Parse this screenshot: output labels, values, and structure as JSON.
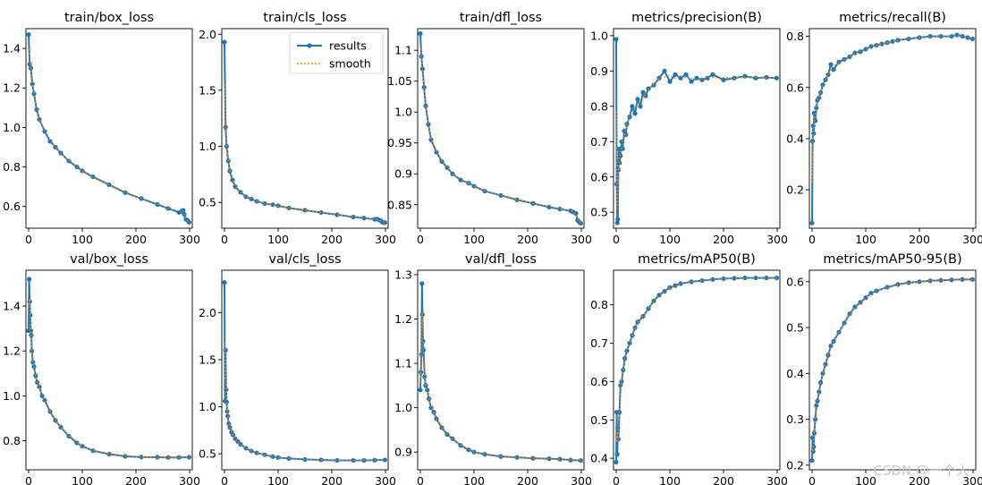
{
  "watermark": "CSDN @一个人",
  "legend": {
    "results": "results",
    "smooth": "smooth"
  },
  "colors": {
    "results": "#1f77b4",
    "smooth": "#ff7f0e",
    "axes": "#000000"
  },
  "chart_data": [
    {
      "type": "line",
      "title": "train/box_loss",
      "xlim": [
        -5,
        305
      ],
      "ylim": [
        0.49,
        1.5
      ],
      "xticks": [
        0,
        100,
        200,
        300
      ],
      "yticks": [
        0.6,
        0.8,
        1.0,
        1.2,
        1.4
      ],
      "x": [
        0,
        2,
        4,
        7,
        10,
        15,
        20,
        30,
        40,
        50,
        60,
        75,
        90,
        100,
        120,
        150,
        180,
        210,
        240,
        260,
        280,
        285,
        288,
        290,
        293,
        296,
        299
      ],
      "series": [
        {
          "name": "results",
          "values": [
            1.47,
            1.32,
            1.3,
            1.22,
            1.17,
            1.09,
            1.04,
            0.98,
            0.93,
            0.9,
            0.87,
            0.83,
            0.8,
            0.78,
            0.75,
            0.71,
            0.67,
            0.64,
            0.61,
            0.59,
            0.57,
            0.575,
            0.58,
            0.56,
            0.535,
            0.53,
            0.52
          ]
        }
      ]
    },
    {
      "type": "line",
      "title": "train/cls_loss",
      "xlim": [
        -5,
        305
      ],
      "ylim": [
        0.27,
        2.05
      ],
      "xticks": [
        0,
        100,
        200,
        300
      ],
      "yticks": [
        0.5,
        1.0,
        1.5,
        2.0
      ],
      "legend": true,
      "x": [
        0,
        2,
        4,
        7,
        10,
        15,
        20,
        30,
        40,
        50,
        60,
        75,
        90,
        100,
        120,
        150,
        180,
        210,
        240,
        260,
        280,
        285,
        290,
        293,
        296,
        299
      ],
      "series": [
        {
          "name": "results",
          "values": [
            1.93,
            1.17,
            1.0,
            0.87,
            0.78,
            0.7,
            0.64,
            0.59,
            0.55,
            0.53,
            0.51,
            0.49,
            0.48,
            0.47,
            0.45,
            0.43,
            0.41,
            0.39,
            0.37,
            0.36,
            0.35,
            0.35,
            0.34,
            0.33,
            0.32,
            0.32
          ]
        }
      ]
    },
    {
      "type": "line",
      "title": "train/dfl_loss",
      "xlim": [
        -5,
        305
      ],
      "ylim": [
        0.812,
        1.135
      ],
      "xticks": [
        0,
        100,
        200,
        300
      ],
      "yticks": [
        0.85,
        0.9,
        0.95,
        1.0,
        1.05,
        1.1
      ],
      "x": [
        0,
        2,
        4,
        7,
        10,
        15,
        20,
        30,
        40,
        50,
        60,
        75,
        90,
        100,
        120,
        150,
        180,
        210,
        240,
        260,
        280,
        285,
        290,
        293,
        296,
        299
      ],
      "series": [
        {
          "name": "results",
          "values": [
            1.127,
            1.09,
            1.07,
            1.04,
            1.01,
            0.98,
            0.955,
            0.935,
            0.92,
            0.91,
            0.9,
            0.89,
            0.885,
            0.88,
            0.872,
            0.865,
            0.858,
            0.852,
            0.846,
            0.843,
            0.84,
            0.838,
            0.836,
            0.825,
            0.822,
            0.82
          ]
        }
      ]
    },
    {
      "type": "line",
      "title": "metrics/precision(B)",
      "xlim": [
        -5,
        305
      ],
      "ylim": [
        0.455,
        1.02
      ],
      "xticks": [
        0,
        100,
        200,
        300
      ],
      "yticks": [
        0.5,
        0.6,
        0.7,
        0.8,
        0.9,
        1.0
      ],
      "x": [
        0,
        1,
        2,
        3,
        4,
        5,
        6,
        8,
        10,
        12,
        15,
        18,
        20,
        25,
        30,
        35,
        40,
        45,
        50,
        55,
        60,
        70,
        80,
        90,
        100,
        110,
        120,
        130,
        140,
        150,
        160,
        170,
        180,
        200,
        220,
        240,
        260,
        280,
        299
      ],
      "series": [
        {
          "name": "results",
          "values": [
            0.99,
            0.58,
            0.47,
            0.48,
            0.62,
            0.68,
            0.64,
            0.66,
            0.7,
            0.68,
            0.73,
            0.72,
            0.75,
            0.77,
            0.8,
            0.78,
            0.82,
            0.8,
            0.84,
            0.83,
            0.85,
            0.86,
            0.88,
            0.9,
            0.87,
            0.89,
            0.88,
            0.89,
            0.87,
            0.88,
            0.875,
            0.88,
            0.89,
            0.875,
            0.88,
            0.885,
            0.88,
            0.882,
            0.88
          ]
        }
      ]
    },
    {
      "type": "line",
      "title": "metrics/recall(B)",
      "xlim": [
        -5,
        305
      ],
      "ylim": [
        0.05,
        0.83
      ],
      "xticks": [
        0,
        100,
        200,
        300
      ],
      "yticks": [
        0.2,
        0.4,
        0.6,
        0.8
      ],
      "x": [
        0,
        1,
        2,
        3,
        4,
        6,
        8,
        10,
        13,
        16,
        20,
        25,
        30,
        35,
        40,
        50,
        60,
        70,
        80,
        90,
        100,
        110,
        120,
        130,
        140,
        150,
        160,
        180,
        200,
        220,
        240,
        260,
        270,
        280,
        290,
        299
      ],
      "series": [
        {
          "name": "results",
          "values": [
            0.07,
            0.39,
            0.45,
            0.42,
            0.5,
            0.47,
            0.52,
            0.55,
            0.56,
            0.58,
            0.61,
            0.63,
            0.65,
            0.69,
            0.67,
            0.7,
            0.71,
            0.72,
            0.735,
            0.74,
            0.75,
            0.76,
            0.765,
            0.77,
            0.775,
            0.78,
            0.785,
            0.79,
            0.795,
            0.8,
            0.8,
            0.8,
            0.805,
            0.8,
            0.795,
            0.79
          ]
        }
      ]
    },
    {
      "type": "line",
      "title": "val/box_loss",
      "xlim": [
        -5,
        305
      ],
      "ylim": [
        0.67,
        1.56
      ],
      "xticks": [
        0,
        100,
        200,
        300
      ],
      "yticks": [
        0.8,
        1.0,
        1.2,
        1.4
      ],
      "x": [
        0,
        1,
        2,
        3,
        4,
        5,
        6,
        8,
        10,
        13,
        16,
        20,
        25,
        30,
        40,
        50,
        60,
        75,
        90,
        100,
        120,
        150,
        180,
        210,
        240,
        260,
        280,
        299
      ],
      "series": [
        {
          "name": "results",
          "values": [
            1.29,
            1.52,
            1.42,
            1.36,
            1.29,
            1.27,
            1.2,
            1.15,
            1.13,
            1.09,
            1.06,
            1.04,
            1.0,
            0.98,
            0.93,
            0.89,
            0.86,
            0.82,
            0.79,
            0.775,
            0.755,
            0.74,
            0.73,
            0.727,
            0.726,
            0.725,
            0.725,
            0.726
          ]
        }
      ]
    },
    {
      "type": "line",
      "title": "val/cls_loss",
      "xlim": [
        -5,
        305
      ],
      "ylim": [
        0.33,
        2.45
      ],
      "xticks": [
        0,
        100,
        200,
        300
      ],
      "yticks": [
        0.5,
        1.0,
        1.5,
        2.0
      ],
      "x": [
        0,
        1,
        2,
        3,
        4,
        5,
        6,
        8,
        10,
        13,
        16,
        20,
        25,
        30,
        40,
        50,
        60,
        75,
        90,
        100,
        120,
        150,
        180,
        210,
        240,
        260,
        280,
        299
      ],
      "series": [
        {
          "name": "results",
          "values": [
            2.32,
            1.06,
            1.6,
            1.18,
            1.05,
            0.95,
            0.9,
            0.82,
            0.78,
            0.73,
            0.7,
            0.66,
            0.63,
            0.6,
            0.56,
            0.53,
            0.51,
            0.49,
            0.47,
            0.46,
            0.45,
            0.44,
            0.435,
            0.43,
            0.43,
            0.43,
            0.432,
            0.435
          ]
        }
      ]
    },
    {
      "type": "line",
      "title": "val/dfl_loss",
      "xlim": [
        -5,
        305
      ],
      "ylim": [
        0.86,
        1.31
      ],
      "xticks": [
        0,
        100,
        200,
        300
      ],
      "yticks": [
        0.9,
        1.0,
        1.1,
        1.2,
        1.3
      ],
      "x": [
        0,
        1,
        2,
        3,
        4,
        5,
        6,
        8,
        10,
        13,
        16,
        20,
        25,
        30,
        40,
        50,
        60,
        75,
        90,
        100,
        120,
        150,
        180,
        210,
        240,
        260,
        280,
        299
      ],
      "series": [
        {
          "name": "results",
          "values": [
            1.04,
            1.08,
            1.12,
            1.28,
            1.21,
            1.15,
            1.13,
            1.07,
            1.05,
            1.04,
            1.02,
            1.0,
            0.99,
            0.975,
            0.955,
            0.94,
            0.93,
            0.915,
            0.905,
            0.9,
            0.895,
            0.89,
            0.888,
            0.886,
            0.885,
            0.884,
            0.882,
            0.881
          ]
        }
      ]
    },
    {
      "type": "line",
      "title": "metrics/mAP50(B)",
      "xlim": [
        -5,
        305
      ],
      "ylim": [
        0.37,
        0.89
      ],
      "xticks": [
        0,
        100,
        200,
        300
      ],
      "yticks": [
        0.4,
        0.5,
        0.6,
        0.7,
        0.8
      ],
      "x": [
        0,
        1,
        2,
        3,
        4,
        6,
        8,
        10,
        13,
        16,
        20,
        25,
        30,
        35,
        40,
        50,
        60,
        70,
        80,
        90,
        100,
        110,
        120,
        140,
        160,
        180,
        200,
        220,
        240,
        260,
        280,
        299
      ],
      "series": [
        {
          "name": "results",
          "values": [
            0.39,
            0.52,
            0.41,
            0.48,
            0.45,
            0.52,
            0.59,
            0.6,
            0.63,
            0.66,
            0.68,
            0.7,
            0.72,
            0.74,
            0.755,
            0.77,
            0.79,
            0.81,
            0.825,
            0.835,
            0.845,
            0.85,
            0.855,
            0.86,
            0.863,
            0.866,
            0.868,
            0.869,
            0.87,
            0.87,
            0.87,
            0.87
          ]
        }
      ]
    },
    {
      "type": "line",
      "title": "metrics/mAP50-95(B)",
      "xlim": [
        -5,
        305
      ],
      "ylim": [
        0.19,
        0.625
      ],
      "xticks": [
        0,
        100,
        200,
        300
      ],
      "yticks": [
        0.2,
        0.3,
        0.4,
        0.5,
        0.6
      ],
      "x": [
        0,
        1,
        2,
        3,
        4,
        6,
        8,
        10,
        13,
        16,
        20,
        25,
        30,
        35,
        40,
        50,
        60,
        70,
        80,
        90,
        100,
        110,
        120,
        140,
        160,
        180,
        200,
        220,
        240,
        260,
        280,
        299
      ],
      "series": [
        {
          "name": "results",
          "values": [
            0.21,
            0.26,
            0.23,
            0.24,
            0.27,
            0.3,
            0.33,
            0.34,
            0.36,
            0.38,
            0.4,
            0.42,
            0.44,
            0.46,
            0.47,
            0.49,
            0.51,
            0.53,
            0.545,
            0.555,
            0.565,
            0.575,
            0.58,
            0.588,
            0.594,
            0.598,
            0.6,
            0.602,
            0.603,
            0.604,
            0.605,
            0.605
          ]
        }
      ]
    }
  ]
}
